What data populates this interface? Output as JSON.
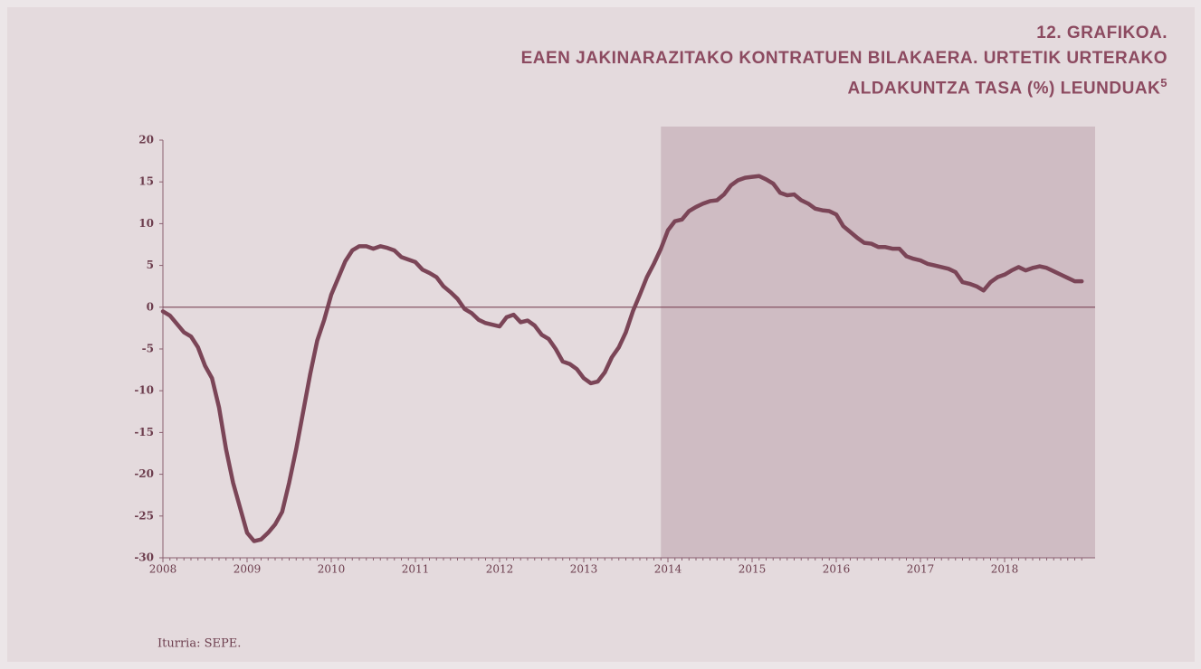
{
  "chart_data": {
    "type": "line",
    "label": "12. GRAFIKOA.",
    "title": [
      "EAEN JAKINARAZITAKO KONTRATUEN BILAKAERA. URTETIK URTERAKO",
      "ALDAKUNTZA TASA (%) LEUNDUAK"
    ],
    "footnote_ref": "5",
    "source": "Iturria: SEPE.",
    "categories": [
      "2008",
      null,
      null,
      null,
      null,
      null,
      null,
      null,
      null,
      null,
      null,
      null,
      "2009",
      null,
      null,
      null,
      null,
      null,
      null,
      null,
      null,
      null,
      null,
      null,
      "2010",
      null,
      null,
      null,
      null,
      null,
      null,
      null,
      null,
      null,
      null,
      null,
      "2011",
      null,
      null,
      null,
      null,
      null,
      null,
      null,
      null,
      null,
      null,
      null,
      "2012",
      null,
      null,
      null,
      null,
      null,
      null,
      null,
      null,
      null,
      null,
      null,
      "2013",
      null,
      null,
      null,
      null,
      null,
      null,
      null,
      null,
      null,
      null,
      null,
      "2014",
      null,
      null,
      null,
      null,
      null,
      null,
      null,
      null,
      null,
      null,
      null,
      "2015",
      null,
      null,
      null,
      null,
      null,
      null,
      null,
      null,
      null,
      null,
      null,
      "2016",
      null,
      null,
      null,
      null,
      null,
      null,
      null,
      null,
      null,
      null,
      null,
      "2017",
      null,
      null,
      null,
      null,
      null,
      null,
      null,
      null,
      null,
      null,
      null,
      "2018",
      null,
      null,
      null,
      null,
      null,
      null,
      null,
      null,
      null,
      null,
      null
    ],
    "series": [
      {
        "color": "#7b4557",
        "values": [
          -0.5,
          -1,
          -2,
          -3,
          -3.5,
          -4.8,
          -7,
          -8.5,
          -12,
          -17,
          -21,
          -24,
          -27,
          -28,
          -27.8,
          -27,
          -26,
          -24.5,
          -21,
          -17,
          -12.5,
          -8,
          -4,
          -1.5,
          1.5,
          3.5,
          5.5,
          6.8,
          7.3,
          7.3,
          7,
          7.3,
          7.1,
          6.8,
          6,
          5.7,
          5.4,
          4.5,
          4.1,
          3.6,
          2.5,
          1.8,
          1,
          -0.2,
          -0.7,
          -1.5,
          -1.9,
          -2.1,
          -2.3,
          -1.2,
          -0.9,
          -1.8,
          -1.6,
          -2.2,
          -3.3,
          -3.8,
          -5,
          -6.5,
          -6.8,
          -7.4,
          -8.5,
          -9.1,
          -8.9,
          -7.8,
          -6,
          -4.8,
          -3,
          -0.5,
          1.5,
          3.6,
          5.2,
          7,
          9.2,
          10.3,
          10.5,
          11.5,
          12,
          12.4,
          12.7,
          12.8,
          13.5,
          14.6,
          15.2,
          15.5,
          15.6,
          15.7,
          15.3,
          14.8,
          13.7,
          13.4,
          13.5,
          12.8,
          12.4,
          11.8,
          11.6,
          11.5,
          11.1,
          9.7,
          9,
          8.3,
          7.7,
          7.6,
          7.2,
          7.2,
          7,
          7,
          6.1,
          5.8,
          5.6,
          5.2,
          5,
          4.8,
          4.6,
          4.2,
          3,
          2.8,
          2.5,
          2,
          3,
          3.6,
          3.9,
          4.4,
          4.8,
          4.4,
          4.7,
          4.9,
          4.7,
          4.3,
          3.9,
          3.5,
          3.1,
          3.1
        ]
      }
    ],
    "ylim": [
      -30,
      20
    ],
    "yticks": [
      -30,
      -25,
      -20,
      -15,
      -10,
      -5,
      0,
      5,
      10,
      15,
      20
    ],
    "shaded_from": 71,
    "shade_color": "#cfbcc3"
  }
}
